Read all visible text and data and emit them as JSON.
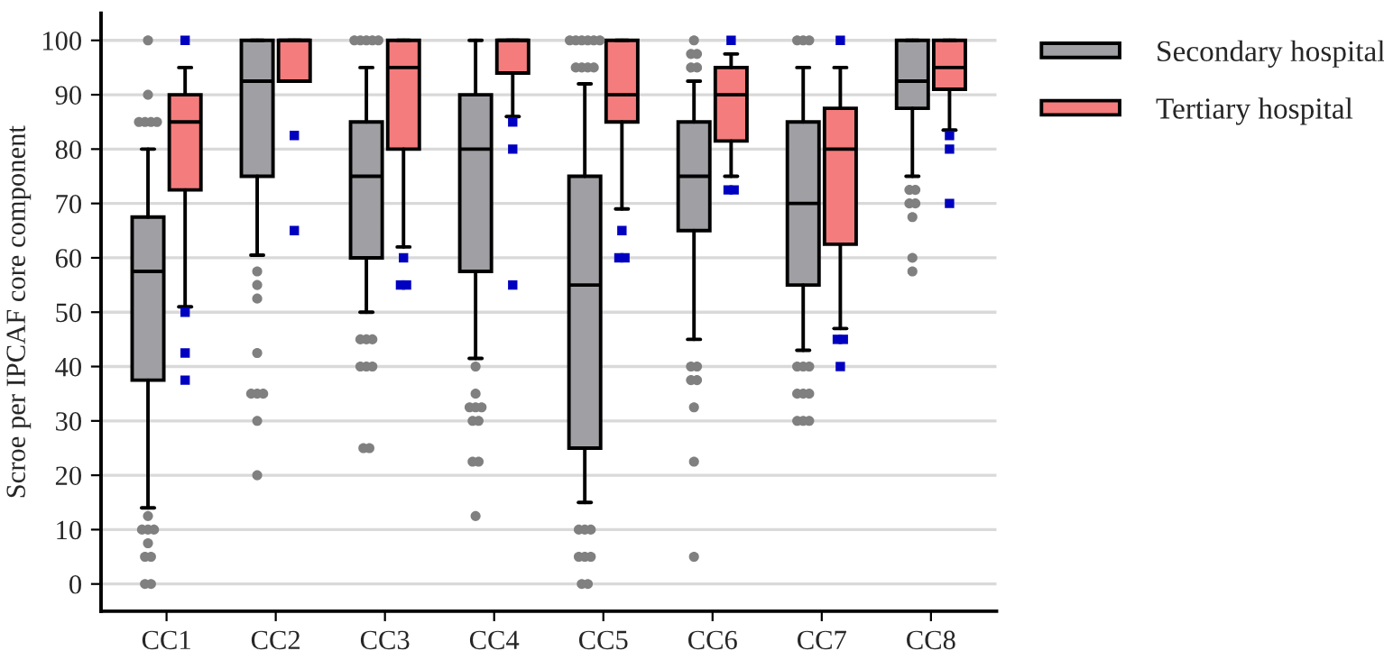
{
  "chart_data": {
    "type": "box",
    "ylabel": "Scroe per IPCAF core component",
    "categories": [
      "CC1",
      "CC2",
      "CC3",
      "CC4",
      "CC5",
      "CC6",
      "CC7",
      "CC8"
    ],
    "ylim": [
      -5,
      105
    ],
    "yticks": [
      0,
      10,
      20,
      30,
      40,
      50,
      60,
      70,
      80,
      90,
      100
    ],
    "grid": "y",
    "legend": "right",
    "series": [
      {
        "name": "Secondary hospital",
        "color": "#a0a0a4",
        "marker": "circle",
        "boxes": [
          {
            "low": 14,
            "q1": 37.5,
            "median": 57.5,
            "q3": 67.5,
            "high": 80,
            "outliers": [
              100,
              90,
              85,
              85,
              85,
              85,
              12.5,
              10,
              10,
              10,
              7.5,
              5,
              5,
              0,
              0
            ]
          },
          {
            "low": 60.5,
            "q1": 75,
            "median": 92.5,
            "q3": 100,
            "high": 100,
            "outliers": [
              57.5,
              55,
              52.5,
              42.5,
              35,
              35,
              35,
              30,
              20
            ]
          },
          {
            "low": 50,
            "q1": 60,
            "median": 75,
            "q3": 85,
            "high": 95,
            "outliers": [
              100,
              100,
              100,
              100,
              100,
              45,
              45,
              45,
              40,
              40,
              40,
              25,
              25
            ]
          },
          {
            "low": 41.5,
            "q1": 57.5,
            "median": 80,
            "q3": 90,
            "high": 100,
            "outliers": [
              40,
              35,
              32.5,
              32.5,
              32.5,
              30,
              30,
              22.5,
              22.5,
              12.5
            ]
          },
          {
            "low": 15,
            "q1": 25,
            "median": 55,
            "q3": 75,
            "high": 92,
            "outliers": [
              100,
              100,
              100,
              100,
              100,
              100,
              95,
              95,
              95,
              95,
              10,
              10,
              10,
              5,
              5,
              5,
              0,
              0
            ]
          },
          {
            "low": 45,
            "q1": 65,
            "median": 75,
            "q3": 85,
            "high": 92.5,
            "outliers": [
              100,
              97.5,
              97.5,
              95,
              95,
              40,
              40,
              37.5,
              37.5,
              32.5,
              22.5,
              5
            ]
          },
          {
            "low": 43,
            "q1": 55,
            "median": 70,
            "q3": 85,
            "high": 95,
            "outliers": [
              100,
              100,
              100,
              40,
              40,
              40,
              35,
              35,
              35,
              30,
              30,
              30
            ]
          },
          {
            "low": 75,
            "q1": 87.5,
            "median": 92.5,
            "q3": 100,
            "high": 100,
            "outliers": [
              72.5,
              72.5,
              70,
              70,
              67.5,
              60,
              57.5
            ]
          }
        ]
      },
      {
        "name": "Tertiary hospital",
        "color": "#f47c7c",
        "marker": "square",
        "boxes": [
          {
            "low": 51,
            "q1": 72.5,
            "median": 85,
            "q3": 90,
            "high": 95,
            "outliers": [
              100,
              50,
              42.5,
              37.5
            ]
          },
          {
            "low": 92.5,
            "q1": 92.5,
            "median": 100,
            "q3": 100,
            "high": 100,
            "outliers": [
              82.5,
              65
            ]
          },
          {
            "low": 62,
            "q1": 80,
            "median": 95,
            "q3": 100,
            "high": 100,
            "outliers": [
              60,
              55,
              55
            ]
          },
          {
            "low": 86,
            "q1": 94,
            "median": 100,
            "q3": 100,
            "high": 100,
            "outliers": [
              85,
              80,
              55
            ]
          },
          {
            "low": 69,
            "q1": 85,
            "median": 90,
            "q3": 100,
            "high": 100,
            "outliers": [
              65,
              60,
              60
            ]
          },
          {
            "low": 75,
            "q1": 81.5,
            "median": 90,
            "q3": 95,
            "high": 97.5,
            "outliers": [
              100,
              72.5,
              72.5
            ]
          },
          {
            "low": 47,
            "q1": 62.5,
            "median": 80,
            "q3": 87.5,
            "high": 95,
            "outliers": [
              100,
              45,
              45,
              40
            ]
          },
          {
            "low": 83.5,
            "q1": 91,
            "median": 95,
            "q3": 100,
            "high": 100,
            "outliers": [
              82.5,
              80,
              70
            ]
          }
        ]
      }
    ]
  }
}
